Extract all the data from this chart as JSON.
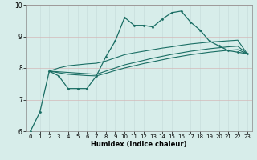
{
  "xlabel": "Humidex (Indice chaleur)",
  "bg_color": "#d7edea",
  "grid_color_major": "#c8dedd",
  "grid_color_minor": "#e8c8c8",
  "line_color": "#1a6e64",
  "xlim": [
    -0.5,
    23.5
  ],
  "ylim": [
    6,
    10
  ],
  "xticks": [
    0,
    1,
    2,
    3,
    4,
    5,
    6,
    7,
    8,
    9,
    10,
    11,
    12,
    13,
    14,
    15,
    16,
    17,
    18,
    19,
    20,
    21,
    22,
    23
  ],
  "yticks": [
    6,
    7,
    8,
    9,
    10
  ],
  "main_x": [
    0,
    1,
    2,
    3,
    4,
    5,
    6,
    7,
    8,
    9,
    10,
    11,
    12,
    13,
    14,
    15,
    16,
    17,
    18,
    19,
    20,
    21,
    22,
    23
  ],
  "main_y": [
    6.0,
    6.6,
    7.9,
    7.75,
    7.35,
    7.35,
    7.35,
    7.75,
    8.35,
    8.85,
    9.6,
    9.35,
    9.35,
    9.3,
    9.55,
    9.75,
    9.8,
    9.45,
    9.2,
    8.85,
    8.7,
    8.55,
    8.5,
    8.45
  ],
  "line2_x": [
    2,
    3,
    4,
    5,
    6,
    7,
    8,
    9,
    10,
    11,
    12,
    13,
    14,
    15,
    16,
    17,
    18,
    19,
    20,
    21,
    22,
    23
  ],
  "line2_y": [
    7.9,
    8.0,
    8.07,
    8.1,
    8.13,
    8.15,
    8.22,
    8.32,
    8.42,
    8.48,
    8.53,
    8.58,
    8.63,
    8.67,
    8.72,
    8.76,
    8.79,
    8.82,
    8.84,
    8.86,
    8.88,
    8.45
  ],
  "line3_x": [
    2,
    3,
    4,
    5,
    6,
    7,
    8,
    9,
    10,
    11,
    12,
    13,
    14,
    15,
    16,
    17,
    18,
    19,
    20,
    21,
    22,
    23
  ],
  "line3_y": [
    7.9,
    7.88,
    7.86,
    7.84,
    7.82,
    7.8,
    7.9,
    8.0,
    8.1,
    8.17,
    8.24,
    8.31,
    8.37,
    8.43,
    8.48,
    8.53,
    8.57,
    8.61,
    8.64,
    8.67,
    8.69,
    8.45
  ],
  "line4_x": [
    2,
    3,
    4,
    5,
    6,
    7,
    8,
    9,
    10,
    11,
    12,
    13,
    14,
    15,
    16,
    17,
    18,
    19,
    20,
    21,
    22,
    23
  ],
  "line4_y": [
    7.9,
    7.85,
    7.8,
    7.78,
    7.76,
    7.75,
    7.83,
    7.92,
    8.0,
    8.07,
    8.14,
    8.2,
    8.26,
    8.32,
    8.37,
    8.42,
    8.46,
    8.5,
    8.53,
    8.56,
    8.58,
    8.45
  ]
}
